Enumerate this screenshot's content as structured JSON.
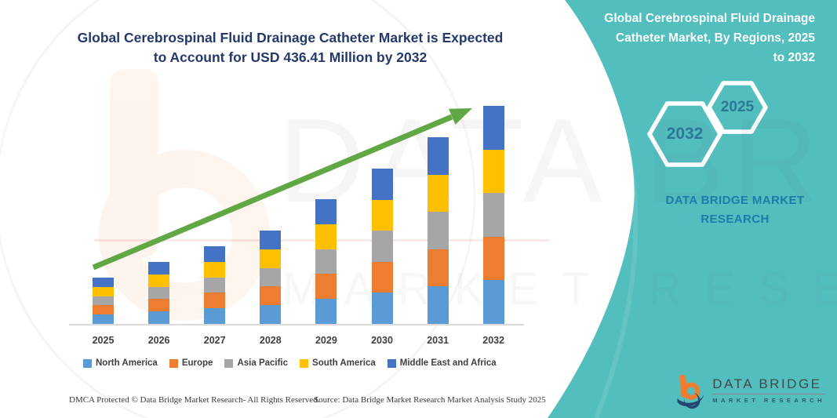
{
  "header": {
    "title_lines": [
      "Global Cerebrospinal Fluid Drainage Catheter Market is Expected",
      "to Account for USD 436.41 Million by 2032"
    ],
    "title_color": "#24386B"
  },
  "banner": {
    "heading_lines": [
      "Global Cerebrospinal Fluid Drainage",
      "Catheter Market, By Regions, 2025",
      "to 2032"
    ],
    "heading_color": "#FFFFFF",
    "background_color": "#53BEBE",
    "hexagons": [
      {
        "label": "2032"
      },
      {
        "label": "2025"
      }
    ],
    "brand_lines": [
      "DATA BRIDGE MARKET",
      "RESEARCH"
    ],
    "brand_color": "#1C7CA8"
  },
  "chart_data": {
    "type": "bar",
    "stacked": true,
    "title": "Global Cerebrospinal Fluid Drainage Catheter Market is Expected to Account for USD 436.41 Million by 2032",
    "categories": [
      "2025",
      "2026",
      "2027",
      "2028",
      "2029",
      "2030",
      "2031",
      "2032"
    ],
    "series": [
      {
        "name": "North America",
        "color": "#5B9BD5",
        "values": [
          18.52,
          24.8,
          31.08,
          37.36,
          49.92,
          62.16,
          74.72,
          87.28
        ]
      },
      {
        "name": "Europe",
        "color": "#ED7D31",
        "values": [
          18.52,
          24.8,
          31.08,
          37.36,
          49.92,
          62.16,
          74.72,
          87.28
        ]
      },
      {
        "name": "Asia Pacific",
        "color": "#A6A6A6",
        "values": [
          18.52,
          24.8,
          31.08,
          37.36,
          49.92,
          62.16,
          74.72,
          87.28
        ]
      },
      {
        "name": "South America",
        "color": "#FFC000",
        "values": [
          18.52,
          24.8,
          31.08,
          37.36,
          49.92,
          62.16,
          74.72,
          87.28
        ]
      },
      {
        "name": "Middle East and Africa",
        "color": "#4472C4",
        "values": [
          18.52,
          24.8,
          31.08,
          37.36,
          49.92,
          62.16,
          74.72,
          87.28
        ]
      }
    ],
    "estimated_totals_usd_million": [
      92.6,
      124.0,
      155.4,
      186.8,
      249.6,
      310.8,
      373.6,
      436.41
    ],
    "labeled_value": "USD 436.41 Million by 2032",
    "xlabel": "",
    "ylabel": "",
    "y_axis_visible": false,
    "gridlines": false,
    "legend_position": "bottom",
    "trend_arrow_color": "#61A744"
  },
  "watermark": {
    "text_big": "DATA BRIDGE",
    "text_small": "MARKET RESEARCH"
  },
  "footer": {
    "dmca": "DMCA Protected © Data Bridge Market Research-  All Rights Reserved.",
    "source": "Source: Data Bridge Market Research  Market Analysis Study 2025"
  },
  "logo": {
    "title": "DATA BRIDGE",
    "subtitle": "MARKET RESEARCH"
  }
}
